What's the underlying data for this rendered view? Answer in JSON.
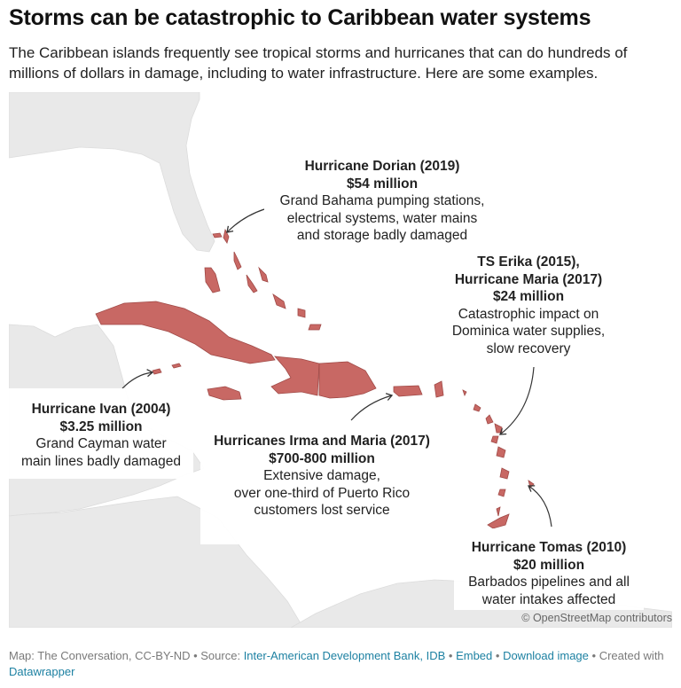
{
  "title": "Storms can be catastrophic to Caribbean water systems",
  "subtitle": "The Caribbean islands frequently see tropical storms and hurricanes that can do hundreds of millions of dollars in damage, including to water infrastructure. Here are some examples.",
  "colors": {
    "land": "#e9e9e9",
    "water": "#ffffff",
    "highlight": "#c86864",
    "highlight_stroke": "#a04a47",
    "link": "#1d81a2"
  },
  "annotations": [
    {
      "id": "dorian",
      "head": "Hurricane Dorian (2019)",
      "amount": "$54 million",
      "desc": [
        "Grand Bahama pumping stations,",
        "electrical systems, water mains",
        "and storage badly damaged"
      ]
    },
    {
      "id": "maria-dominica",
      "head": [
        "TS Erika (2015),",
        "Hurricane Maria (2017)"
      ],
      "amount": "$24 million",
      "desc": [
        "Catastrophic impact on",
        "Dominica water supplies,",
        "slow recovery"
      ]
    },
    {
      "id": "ivan",
      "head": "Hurricane Ivan (2004)",
      "amount": "$3.25 million",
      "desc": [
        "Grand Cayman water",
        "main lines badly damaged"
      ]
    },
    {
      "id": "irma-maria",
      "head": "Hurricanes Irma and Maria (2017)",
      "amount": "$700-800 million",
      "desc": [
        "Extensive damage,",
        "over one-third of Puerto Rico",
        "customers lost service"
      ]
    },
    {
      "id": "tomas",
      "head": "Hurricane Tomas (2010)",
      "amount": "$20 million",
      "desc": [
        "Barbados pipelines and all",
        "water intakes affected"
      ]
    }
  ],
  "attribution": "© OpenStreetMap contributors",
  "footer": {
    "map_credit": "Map: The Conversation, CC-BY-ND",
    "sep": " • ",
    "source_label": "Source: ",
    "source_link": "Inter-American Development Bank, IDB",
    "embed": "Embed",
    "download": "Download image",
    "created": "Created with ",
    "datawrapper": "Datawrapper"
  }
}
